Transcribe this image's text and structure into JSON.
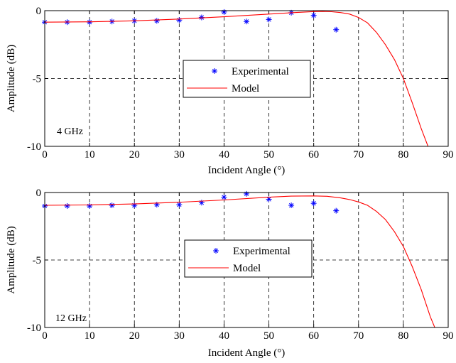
{
  "chart_data": [
    {
      "type": "line",
      "annotation": "4 GHz",
      "xlabel": "Incident Angle (°)",
      "ylabel": "Amplitude (dB)",
      "xlim": [
        0,
        90
      ],
      "ylim": [
        -10,
        0
      ],
      "xticks": [
        "0",
        "10",
        "20",
        "30",
        "40",
        "50",
        "60",
        "70",
        "80",
        "90"
      ],
      "yticks": [
        "0",
        "-5",
        "-10"
      ],
      "grid": true,
      "legend_position": "center",
      "series": [
        {
          "name": "Experimental",
          "marker": "asterisk",
          "color": "#0000ff",
          "x": [
            0,
            5,
            10,
            15,
            20,
            25,
            30,
            35,
            40,
            45,
            50,
            55,
            60,
            65
          ],
          "y": [
            -0.85,
            -0.85,
            -0.85,
            -0.8,
            -0.75,
            -0.75,
            -0.7,
            -0.5,
            -0.1,
            -0.8,
            -0.65,
            -0.15,
            -0.35,
            -1.4
          ]
        },
        {
          "name": "Model",
          "color": "#ff0000",
          "x": [
            0,
            10,
            20,
            30,
            40,
            50,
            55,
            60,
            62,
            64,
            66,
            68,
            70,
            72,
            74,
            76,
            78,
            80,
            82,
            84,
            85.5
          ],
          "y": [
            -0.85,
            -0.82,
            -0.75,
            -0.62,
            -0.45,
            -0.25,
            -0.15,
            -0.07,
            -0.06,
            -0.08,
            -0.14,
            -0.25,
            -0.5,
            -0.9,
            -1.6,
            -2.5,
            -3.6,
            -5.0,
            -6.8,
            -8.7,
            -10
          ]
        }
      ]
    },
    {
      "type": "line",
      "annotation": "12 GHz",
      "xlabel": "Incident Angle (°)",
      "ylabel": "Amplitude (dB)",
      "xlim": [
        0,
        90
      ],
      "ylim": [
        -10,
        0
      ],
      "xticks": [
        "0",
        "10",
        "20",
        "30",
        "40",
        "50",
        "60",
        "70",
        "80",
        "90"
      ],
      "yticks": [
        "0",
        "-5",
        "-10"
      ],
      "grid": true,
      "legend_position": "center",
      "series": [
        {
          "name": "Experimental",
          "marker": "asterisk",
          "color": "#0000ff",
          "x": [
            0,
            5,
            10,
            15,
            20,
            25,
            30,
            35,
            40,
            45,
            50,
            55,
            60,
            65
          ],
          "y": [
            -1.0,
            -1.0,
            -1.0,
            -0.95,
            -0.95,
            -0.9,
            -0.9,
            -0.75,
            -0.35,
            -0.1,
            -0.5,
            -0.95,
            -0.8,
            -1.35
          ]
        },
        {
          "name": "Model",
          "color": "#ff0000",
          "x": [
            0,
            10,
            20,
            30,
            40,
            50,
            55,
            60,
            63,
            66,
            68,
            70,
            72,
            74,
            76,
            78,
            80,
            82,
            84,
            86,
            87
          ],
          "y": [
            -0.95,
            -0.92,
            -0.85,
            -0.72,
            -0.55,
            -0.35,
            -0.27,
            -0.25,
            -0.28,
            -0.4,
            -0.52,
            -0.7,
            -0.95,
            -1.4,
            -2.0,
            -2.9,
            -4.0,
            -5.5,
            -7.2,
            -9.2,
            -10
          ]
        }
      ]
    }
  ]
}
